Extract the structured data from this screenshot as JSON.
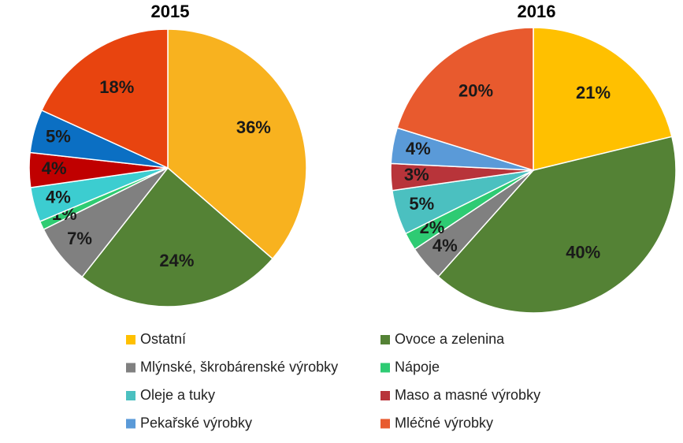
{
  "chart_data": [
    {
      "type": "pie",
      "title": "2015",
      "values": [
        36,
        24,
        7,
        1,
        4,
        4,
        5,
        18
      ],
      "value_labels": [
        "36%",
        "24%",
        "7%",
        "1%",
        "4%",
        "4%",
        "5%",
        "18%"
      ],
      "colors": [
        "#f8b21f",
        "#548235",
        "#808080",
        "#2fcc72",
        "#3ccdd0",
        "#c00000",
        "#0b6fc3",
        "#e8440f"
      ]
    },
    {
      "type": "pie",
      "title": "2016",
      "categories": [
        "Ostatní",
        "Ovoce a zelenina",
        "Mlýnské, škrobárenské výrobky",
        "Nápoje",
        "Oleje a tuky",
        "Maso a masné výrobky",
        "Pekařské výrobky",
        "Mléčné výrobky"
      ],
      "values": [
        21,
        40,
        4,
        2,
        5,
        3,
        4,
        20
      ],
      "value_labels": [
        "21%",
        "40%",
        "4%",
        "2%",
        "5%",
        "3%",
        "4%",
        "20%"
      ],
      "colors": [
        "#ffc000",
        "#548235",
        "#808080",
        "#2ecb73",
        "#4bc0c0",
        "#b8343a",
        "#5a9ad8",
        "#e85a2e"
      ]
    }
  ]
}
